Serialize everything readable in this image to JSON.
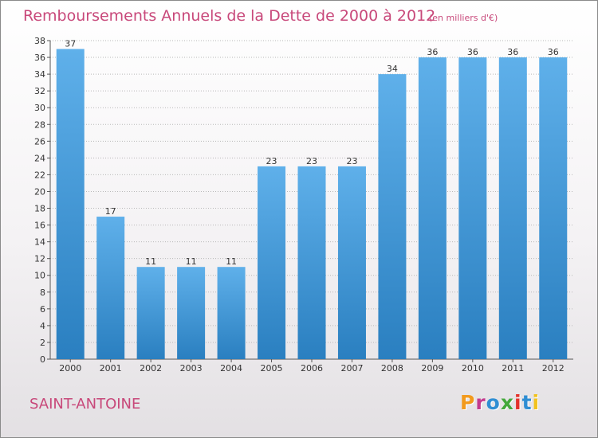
{
  "header": {
    "title": "Remboursements Annuels de la Dette de 2000 à 2012",
    "subtitle": "(en milliers d'€)"
  },
  "footer": {
    "commune": "SAINT-ANTOINE",
    "logo_text": "Proxiti",
    "logo_colors": [
      "#f29a1d",
      "#c33a8e",
      "#2f8ed3",
      "#43a83b",
      "#e3322b",
      "#2f8ed3",
      "#f2c21d"
    ]
  },
  "colors": {
    "accent": "#c8487a",
    "bar_top": "#5fb0ea",
    "bar_bottom": "#2a7fc0",
    "grid": "#b8b8b8",
    "text": "#333333"
  },
  "chart_data": {
    "type": "bar",
    "categories": [
      "2000",
      "2001",
      "2002",
      "2003",
      "2004",
      "2005",
      "2006",
      "2007",
      "2008",
      "2009",
      "2010",
      "2011",
      "2012"
    ],
    "values": [
      37,
      17,
      11,
      11,
      11,
      23,
      23,
      23,
      34,
      36,
      36,
      36,
      36
    ],
    "ylim": [
      0,
      38
    ],
    "yticks": [
      0,
      2,
      4,
      6,
      8,
      10,
      12,
      14,
      16,
      18,
      20,
      22,
      24,
      26,
      28,
      30,
      32,
      34,
      36,
      38
    ],
    "grid": true,
    "title": "Remboursements Annuels de la Dette de 2000 à 2012",
    "xlabel": "",
    "ylabel": ""
  }
}
